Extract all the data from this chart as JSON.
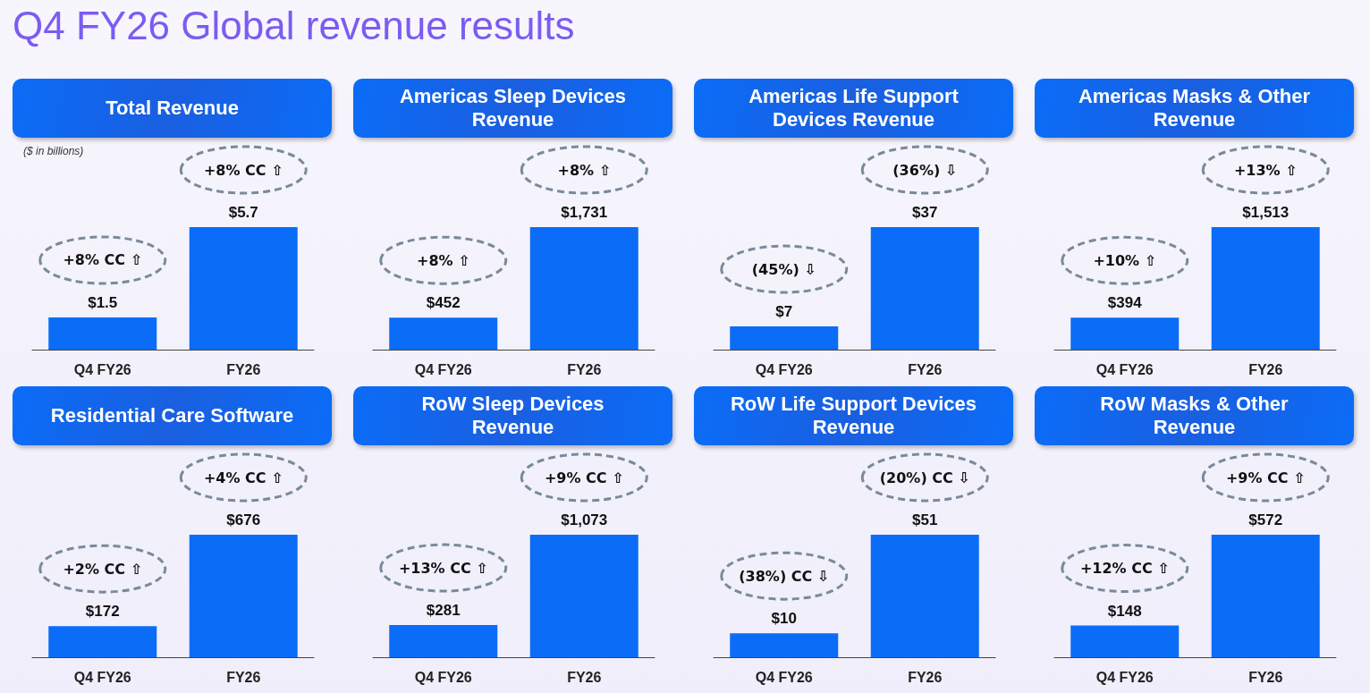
{
  "chart_data": [
    {
      "type": "bar",
      "title": "Total Revenue",
      "categories": [
        "Q4 FY26",
        "FY26"
      ],
      "values": [
        1.5,
        5.7
      ],
      "value_labels": [
        "$1.5",
        "$5.7"
      ],
      "color": "#0b6cf7",
      "tick_labels": "x",
      "annotations": [
        "Q4 FY26 Global revenue results",
        "($ in billions)",
        "+8% CC ⇧",
        "+8% CC ⇧"
      ]
    },
    {
      "type": "bar",
      "title": "Americas Sleep Devices Revenue",
      "categories": [
        "Q4 FY26",
        "FY26"
      ],
      "values": [
        452,
        1731
      ],
      "value_labels": [
        "$452",
        "$1,731"
      ],
      "color": "#0b6cf7",
      "tick_labels": "x",
      "annotations": [
        "+8% ⇧",
        "+8% ⇧"
      ]
    },
    {
      "type": "bar",
      "title": "Americas Life Support Devices Revenue",
      "categories": [
        "Q4 FY26",
        "FY26"
      ],
      "values": [
        7,
        37
      ],
      "value_labels": [
        "$7",
        "$37"
      ],
      "color": "#0b6cf7",
      "tick_labels": "x",
      "annotations": [
        "(45%) ⇩",
        "(36%) ⇩"
      ]
    },
    {
      "type": "bar",
      "title": "Americas Masks & Other Revenue",
      "categories": [
        "Q4 FY26",
        "FY26"
      ],
      "values": [
        394,
        1513
      ],
      "value_labels": [
        "$394",
        "$1,513"
      ],
      "color": "#0b6cf7",
      "tick_labels": "x",
      "annotations": [
        "+10% ⇧",
        "+13% ⇧"
      ]
    },
    {
      "type": "bar",
      "title": "Residential Care Software",
      "categories": [
        "Q4 FY26",
        "FY26"
      ],
      "values": [
        172,
        676
      ],
      "value_labels": [
        "$172",
        "$676"
      ],
      "color": "#0b6cf7",
      "tick_labels": "x",
      "annotations": [
        "+2% CC ⇧",
        "+4% CC ⇧"
      ]
    },
    {
      "type": "bar",
      "title": "RoW Sleep Devices Revenue",
      "categories": [
        "Q4 FY26",
        "FY26"
      ],
      "values": [
        281,
        1073
      ],
      "value_labels": [
        "$281",
        "$1,073"
      ],
      "color": "#0b6cf7",
      "tick_labels": "x",
      "annotations": [
        "+13% CC ⇧",
        "+9% CC ⇧"
      ]
    },
    {
      "type": "bar",
      "title": "RoW Life Support Devices Revenue",
      "categories": [
        "Q4 FY26",
        "FY26"
      ],
      "values": [
        10,
        51
      ],
      "value_labels": [
        "$10",
        "$51"
      ],
      "color": "#0b6cf7",
      "tick_labels": "x",
      "annotations": [
        "(38%) CC ⇩",
        "(20%) CC ⇩"
      ]
    },
    {
      "type": "bar",
      "title": "RoW Masks & Other Revenue",
      "categories": [
        "Q4 FY26",
        "FY26"
      ],
      "values": [
        148,
        572
      ],
      "value_labels": [
        "$148",
        "$572"
      ],
      "color": "#0b6cf7",
      "tick_labels": "x",
      "annotations": [
        "+12% CC ⇧",
        "+9% CC ⇧"
      ]
    }
  ]
}
